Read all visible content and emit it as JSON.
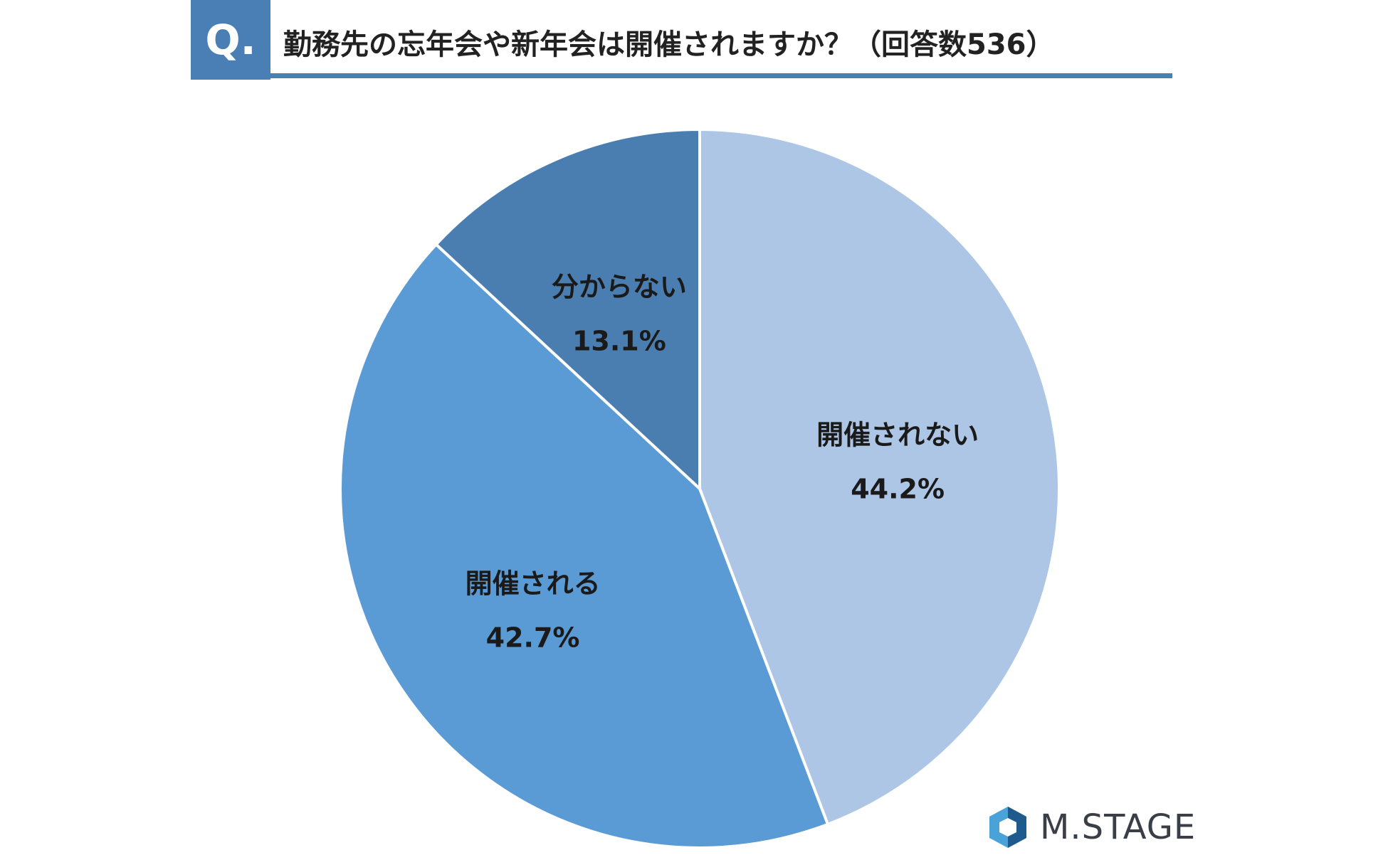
{
  "header": {
    "badge": "Q.",
    "question": "勤務先の忘年会や新年会は開催されますか？（回答数536）"
  },
  "chart_data": {
    "type": "pie",
    "title": "勤務先の忘年会や新年会は開催されますか？（回答数536）",
    "slices": [
      {
        "label": "開催されない",
        "value": 44.2,
        "value_label": "44.2%",
        "color": "#adc6e6"
      },
      {
        "label": "開催される",
        "value": 42.7,
        "value_label": "42.7%",
        "color": "#5b9bd5"
      },
      {
        "label": "分からない",
        "value": 13.1,
        "value_label": "13.1%",
        "color": "#4a7eb0"
      }
    ],
    "start_angle": "12 o'clock",
    "direction": "clockwise",
    "unit": "%"
  },
  "logo": {
    "text": "M.STAGE",
    "color": "#3a3f47",
    "mark_color_light": "#4aa3d8",
    "mark_color_dark": "#1e5a8c"
  }
}
